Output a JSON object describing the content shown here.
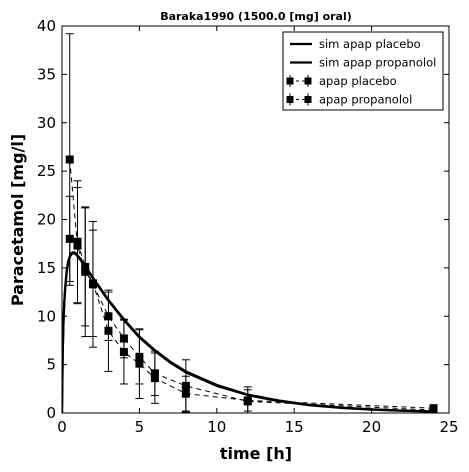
{
  "chart_data": {
    "type": "line",
    "title": "Baraka1990 (1500.0 [mg] oral)",
    "xlabel": "time [h]",
    "ylabel": "Paracetamol [mg/l]",
    "xlim": [
      0,
      25
    ],
    "ylim": [
      0,
      40
    ],
    "xticks": [
      0,
      5,
      10,
      15,
      20,
      25
    ],
    "yticks": [
      0,
      5,
      10,
      15,
      20,
      25,
      30,
      35,
      40
    ],
    "grid": false,
    "legend_position": "top-right",
    "series": [
      {
        "name": "sim apap placebo",
        "kind": "simulation",
        "color": "#000000",
        "x": [
          0.0,
          0.05,
          0.1,
          0.15,
          0.2,
          0.3,
          0.4,
          0.5,
          0.6,
          0.7,
          0.8,
          0.9,
          1.0,
          1.2,
          1.5,
          2,
          3,
          4,
          5,
          6,
          7,
          8,
          10,
          12,
          14,
          16,
          18,
          20,
          22,
          24
        ],
        "y": [
          0.0,
          6.5,
          9.7,
          11.6,
          12.9,
          14.7,
          15.7,
          16.2,
          16.5,
          16.6,
          16.6,
          16.5,
          16.3,
          15.9,
          15.2,
          14.0,
          11.7,
          9.7,
          7.9,
          6.5,
          5.3,
          4.3,
          2.9,
          1.9,
          1.3,
          0.85,
          0.57,
          0.38,
          0.25,
          0.16
        ]
      },
      {
        "name": "sim apap propanolol",
        "kind": "simulation",
        "color": "#000000",
        "x": [
          0.0,
          0.05,
          0.1,
          0.15,
          0.2,
          0.3,
          0.4,
          0.5,
          0.6,
          0.7,
          0.8,
          0.9,
          1.0,
          1.2,
          1.5,
          2,
          3,
          4,
          5,
          6,
          7,
          8,
          10,
          12,
          14,
          16,
          18,
          20,
          22,
          24
        ],
        "y": [
          0.0,
          6.3,
          9.5,
          11.4,
          12.7,
          14.5,
          15.5,
          16.1,
          16.4,
          16.5,
          16.5,
          16.4,
          16.2,
          15.8,
          15.1,
          13.9,
          11.6,
          9.6,
          7.8,
          6.4,
          5.2,
          4.2,
          2.8,
          1.85,
          1.22,
          0.8,
          0.53,
          0.35,
          0.23,
          0.15
        ]
      },
      {
        "name": "apap placebo",
        "kind": "data",
        "color": "#000000",
        "x": [
          0.5,
          1,
          1.5,
          2,
          3,
          4,
          5,
          6,
          8,
          12,
          24
        ],
        "y": [
          26.2,
          17.3,
          14.6,
          13.4,
          8.5,
          6.3,
          5.1,
          3.6,
          2.0,
          1.3,
          0.5
        ],
        "err": [
          13.0,
          6.0,
          6.7,
          5.5,
          4.2,
          3.3,
          3.6,
          2.6,
          1.8,
          1.1,
          0.3
        ]
      },
      {
        "name": "apap propanolol",
        "kind": "data",
        "color": "#000000",
        "x": [
          0.5,
          1,
          1.5,
          2,
          3,
          4,
          5,
          6,
          8,
          12,
          24
        ],
        "y": [
          18.0,
          17.7,
          15.1,
          13.3,
          10.0,
          7.7,
          5.8,
          4.1,
          2.8,
          1.2,
          0.3
        ],
        "err": [
          4.4,
          6.3,
          6.1,
          6.5,
          2.5,
          2.0,
          2.8,
          2.3,
          2.7,
          1.5,
          0.3
        ]
      }
    ]
  }
}
